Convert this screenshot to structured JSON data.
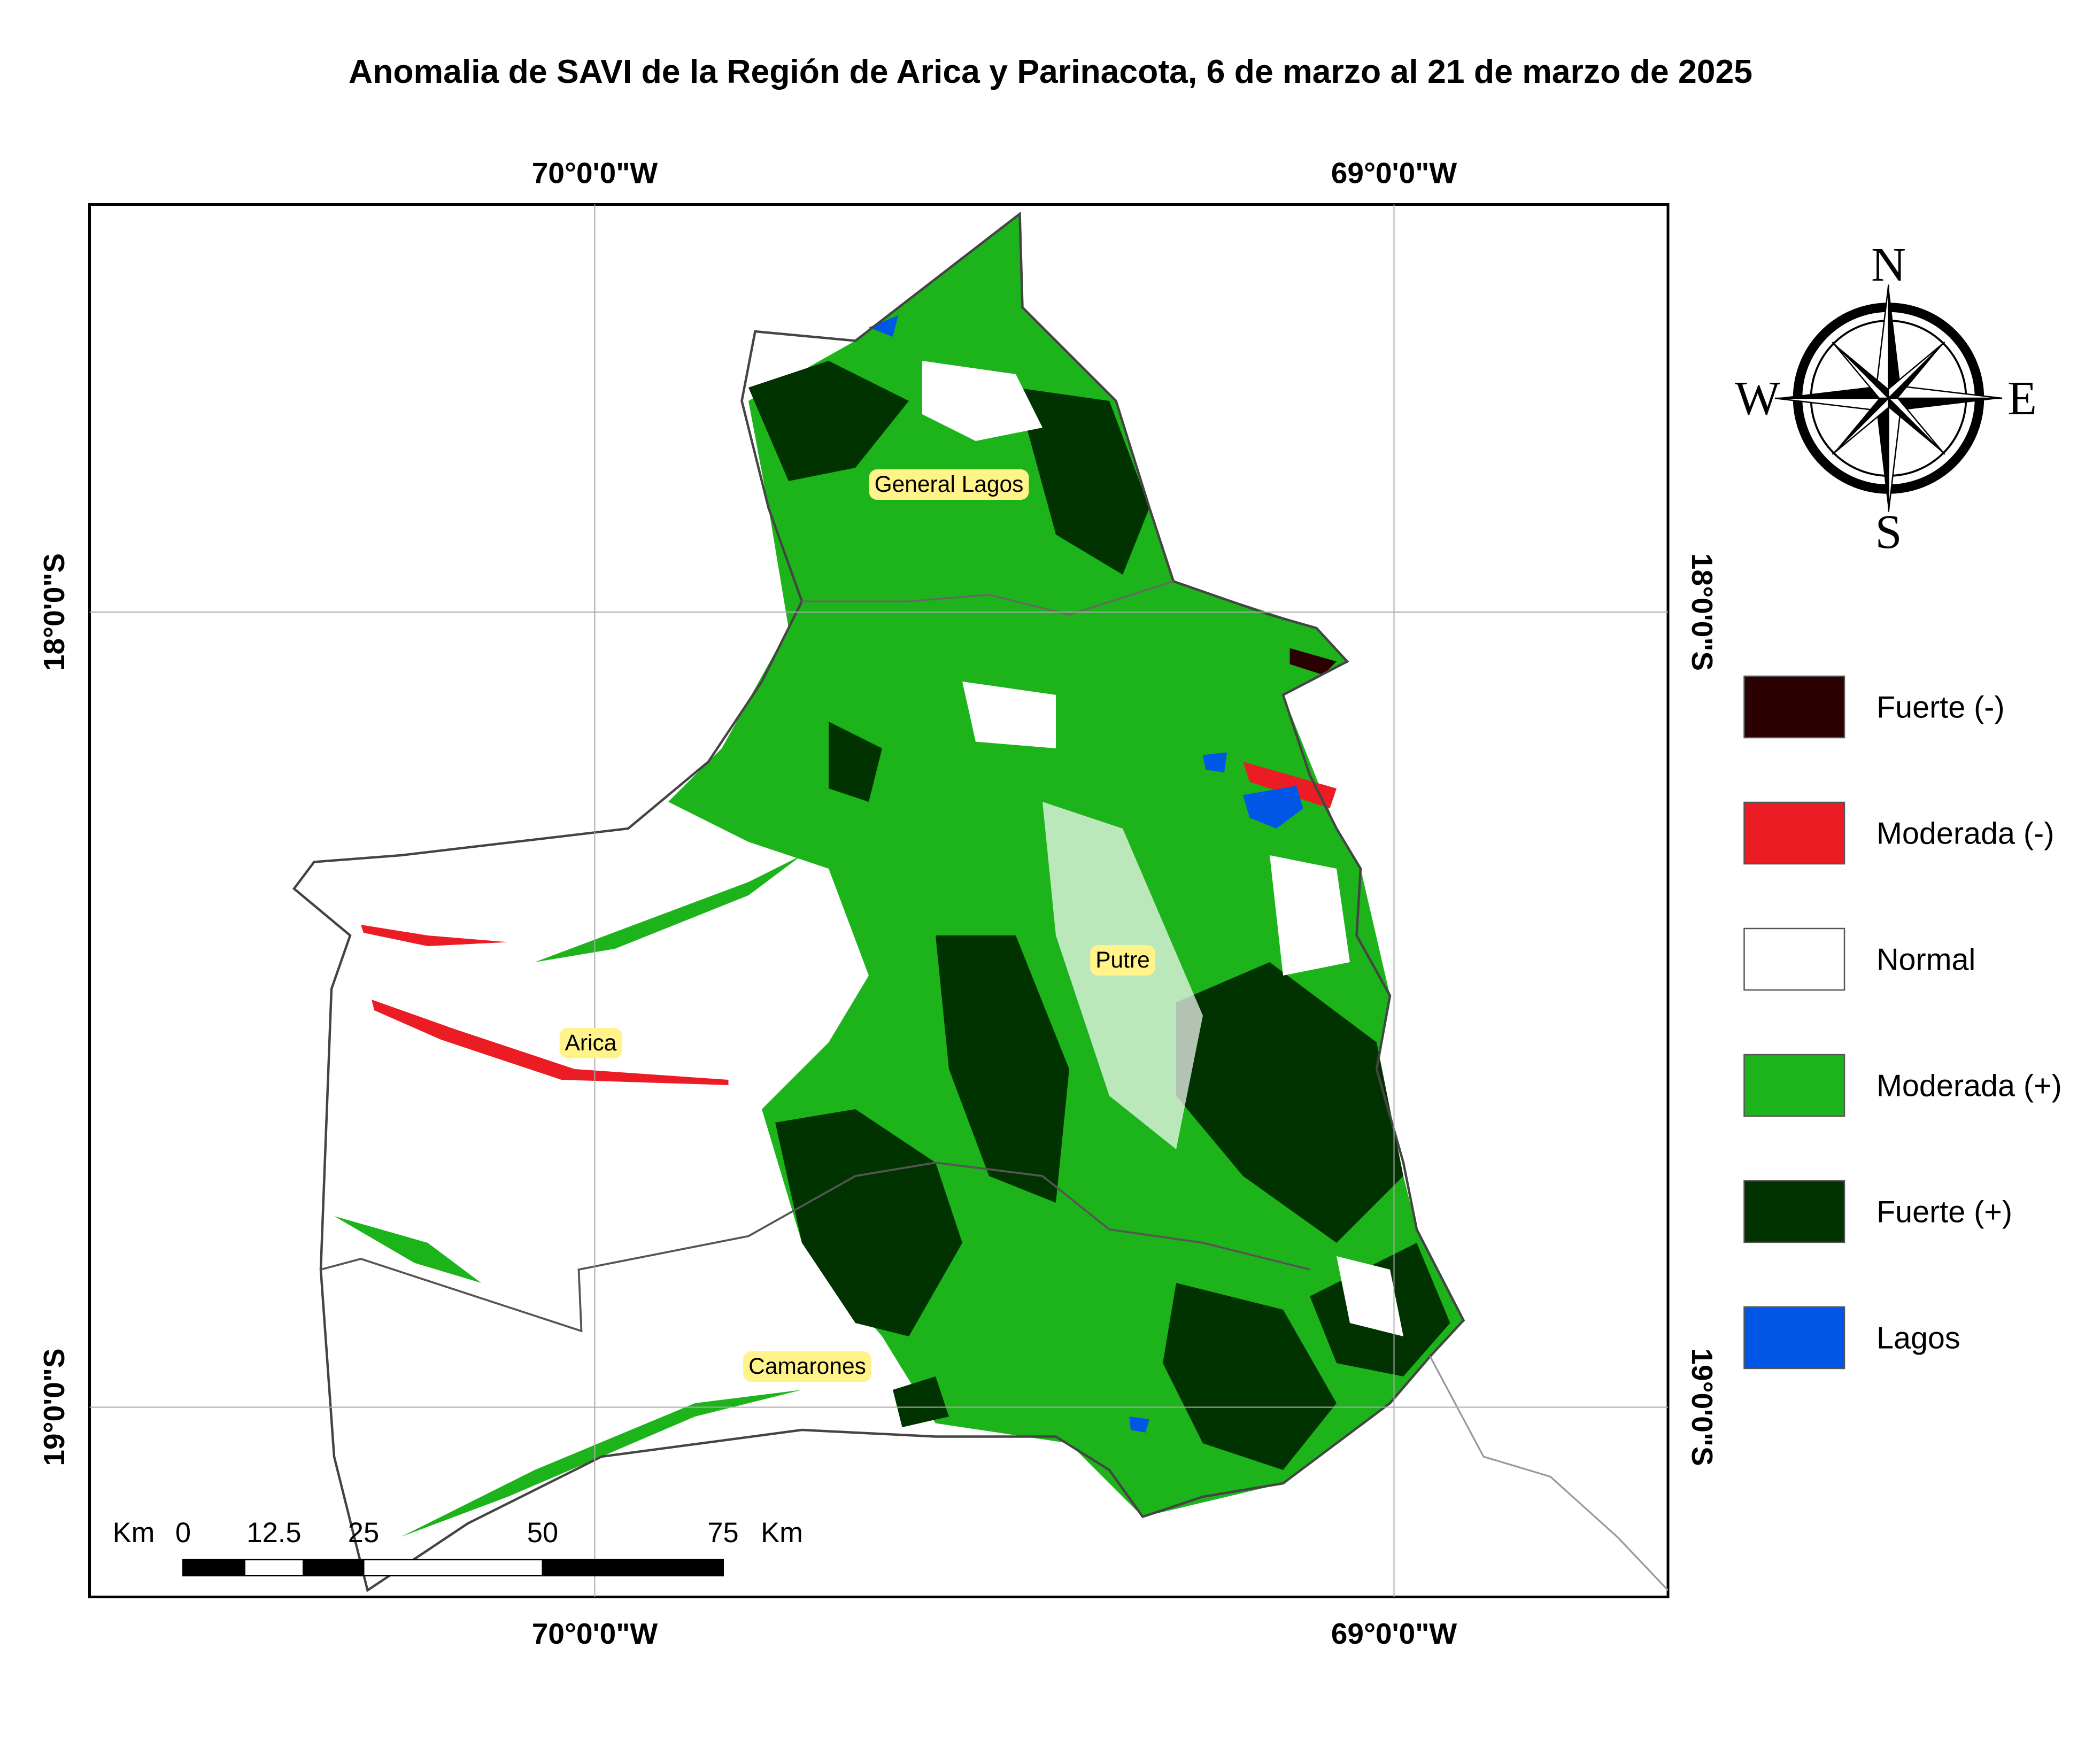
{
  "title": "Anomalia de SAVI de la Región de Arica y Parinacota, 6 de marzo al 21 de marzo de 2025",
  "graticule": {
    "longitudes": [
      "70°0'0\"W",
      "69°0'0\"W"
    ],
    "latitudes": [
      "18°0'0\"S",
      "19°0'0\"S"
    ]
  },
  "places": [
    "General Lagos",
    "Putre",
    "Arica",
    "Camarones"
  ],
  "legend": [
    {
      "label": "Fuerte (-)",
      "color": "#2b0000"
    },
    {
      "label": "Moderada (-)",
      "color": "#ec1c24"
    },
    {
      "label": "Normal",
      "color": "#ffffff"
    },
    {
      "label": "Moderada (+)",
      "color": "#1db31a"
    },
    {
      "label": "Fuerte (+)",
      "color": "#003300"
    },
    {
      "label": "Lagos",
      "color": "#0057e7"
    }
  ],
  "scale_bar": {
    "unit": "Km",
    "ticks": [
      "0",
      "12.5",
      "25",
      "50",
      "75"
    ]
  },
  "compass": {
    "north": "N",
    "south": "S",
    "east": "E",
    "west": "W"
  }
}
